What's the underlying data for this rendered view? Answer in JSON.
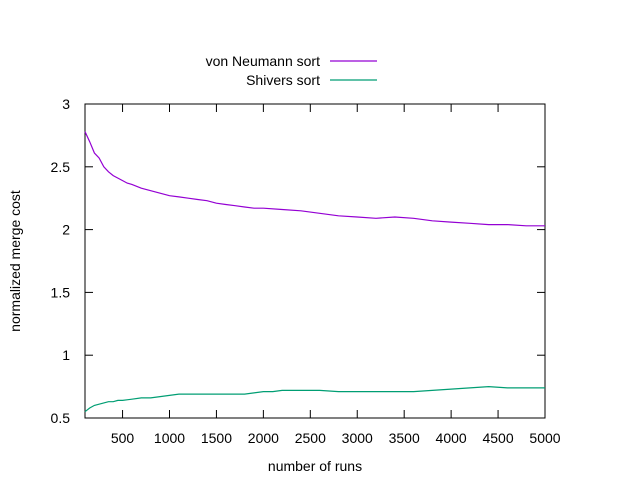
{
  "chart_data": {
    "type": "line",
    "title": "",
    "xlabel": "number of runs",
    "ylabel": "normalized merge cost",
    "xlim": [
      100,
      5000
    ],
    "ylim": [
      0.5,
      3
    ],
    "xticks": [
      500,
      1000,
      1500,
      2000,
      2500,
      3000,
      3500,
      4000,
      4500,
      5000
    ],
    "yticks": [
      0.5,
      1,
      1.5,
      2,
      2.5,
      3
    ],
    "ytick_labels": [
      "0.5",
      "1",
      "1.5",
      "2",
      "2.5",
      "3"
    ],
    "grid": false,
    "legend_position": "top-center",
    "series": [
      {
        "name": "von Neumann sort",
        "color": "#9400d3",
        "x": [
          100,
          150,
          200,
          250,
          300,
          350,
          400,
          450,
          500,
          550,
          600,
          700,
          800,
          900,
          1000,
          1100,
          1200,
          1300,
          1400,
          1500,
          1600,
          1700,
          1800,
          1900,
          2000,
          2200,
          2400,
          2600,
          2800,
          3000,
          3200,
          3400,
          3600,
          3800,
          4000,
          4200,
          4400,
          4600,
          4800,
          5000
        ],
        "y": [
          2.78,
          2.7,
          2.61,
          2.57,
          2.5,
          2.46,
          2.43,
          2.41,
          2.39,
          2.37,
          2.36,
          2.33,
          2.31,
          2.29,
          2.27,
          2.26,
          2.25,
          2.24,
          2.23,
          2.21,
          2.2,
          2.19,
          2.18,
          2.17,
          2.17,
          2.16,
          2.15,
          2.13,
          2.11,
          2.1,
          2.09,
          2.1,
          2.09,
          2.07,
          2.06,
          2.05,
          2.04,
          2.04,
          2.03,
          2.03
        ]
      },
      {
        "name": "Shivers sort",
        "color": "#009e73",
        "x": [
          100,
          150,
          200,
          250,
          300,
          350,
          400,
          450,
          500,
          600,
          700,
          800,
          900,
          1000,
          1100,
          1200,
          1400,
          1600,
          1800,
          1900,
          2000,
          2100,
          2200,
          2400,
          2600,
          2800,
          3000,
          3200,
          3400,
          3600,
          3800,
          4000,
          4200,
          4400,
          4600,
          4800,
          5000
        ],
        "y": [
          0.55,
          0.58,
          0.6,
          0.61,
          0.62,
          0.63,
          0.63,
          0.64,
          0.64,
          0.65,
          0.66,
          0.66,
          0.67,
          0.68,
          0.69,
          0.69,
          0.69,
          0.69,
          0.69,
          0.7,
          0.71,
          0.71,
          0.72,
          0.72,
          0.72,
          0.71,
          0.71,
          0.71,
          0.71,
          0.71,
          0.72,
          0.73,
          0.74,
          0.75,
          0.74,
          0.74,
          0.74
        ]
      }
    ]
  }
}
